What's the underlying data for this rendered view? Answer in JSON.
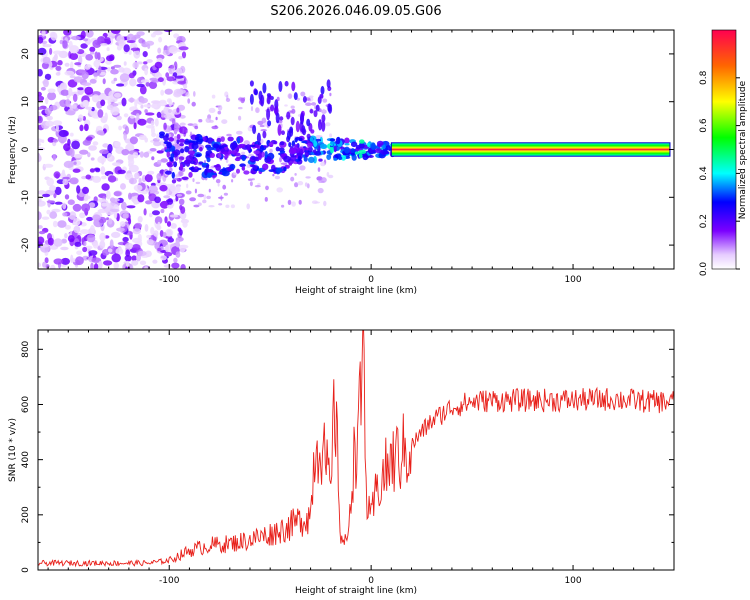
{
  "chart_data": [
    {
      "type": "heatmap",
      "title": "S206.2026.046.09.05.G06",
      "xlabel": "Height of straight line (km)",
      "ylabel": "Frequency (Hz)",
      "xlim": [
        -165,
        150
      ],
      "ylim": [
        -25,
        25
      ],
      "xticks": [
        -100,
        0,
        100
      ],
      "yticks": [
        -20,
        -10,
        0,
        10,
        20
      ],
      "colorbar": {
        "label": "Normalized spectral amplitude",
        "range": [
          0,
          1
        ],
        "ticks": [
          0.0,
          0.2,
          0.4,
          0.6,
          0.8
        ]
      },
      "features": {
        "noise_region_km": [
          -165,
          -100
        ],
        "signal_band_center_hz": 0,
        "clean_tone_start_km": 10,
        "clean_tone_end_km": 148
      }
    },
    {
      "type": "line",
      "title": "",
      "xlabel": "Height of straight line (km)",
      "ylabel": "SNR (10 * v/v)",
      "xlim": [
        -165,
        150
      ],
      "ylim": [
        0,
        870
      ],
      "xticks": [
        -100,
        0,
        100
      ],
      "yticks": [
        0,
        200,
        400,
        600,
        800
      ],
      "series": [
        {
          "name": "SNR",
          "color": "#e8201a",
          "x": [
            -165,
            -150,
            -130,
            -110,
            -100,
            -90,
            -80,
            -70,
            -60,
            -50,
            -40,
            -30,
            -28,
            -25,
            -20,
            -18,
            -15,
            -12,
            -10,
            -8,
            -5,
            -4,
            -2,
            0,
            3,
            5,
            10,
            15,
            20,
            25,
            30,
            35,
            40,
            50,
            60,
            70,
            80,
            100,
            120,
            140,
            150
          ],
          "y": [
            25,
            25,
            25,
            25,
            35,
            70,
            90,
            95,
            110,
            130,
            160,
            200,
            430,
            480,
            280,
            620,
            120,
            90,
            300,
            430,
            590,
            860,
            220,
            180,
            300,
            330,
            390,
            420,
            450,
            500,
            540,
            565,
            590,
            610,
            615,
            615,
            615,
            615,
            620,
            610,
            610
          ]
        }
      ]
    }
  ]
}
